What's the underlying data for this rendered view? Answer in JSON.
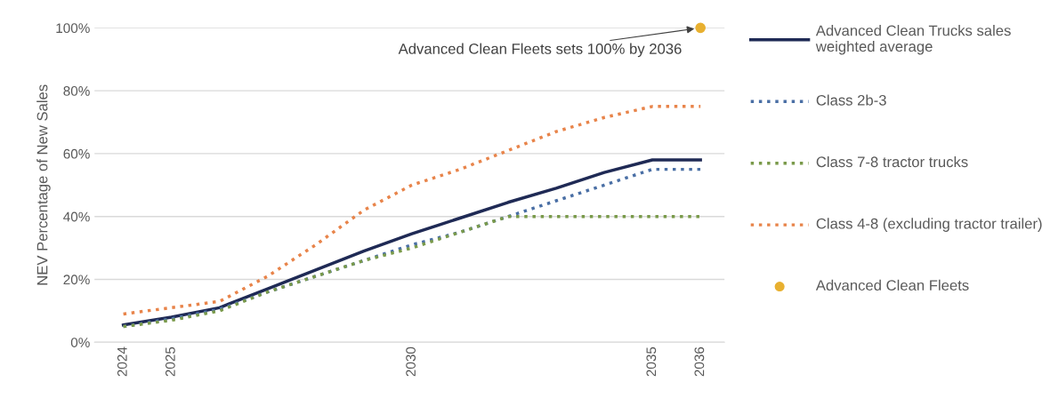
{
  "chart_data": {
    "type": "line",
    "ylabel": "NEV Percentage of New Sales",
    "x": [
      2024,
      2025,
      2026,
      2027,
      2028,
      2029,
      2030,
      2031,
      2032,
      2033,
      2034,
      2035,
      2036
    ],
    "series": [
      {
        "name": "Advanced Clean Trucks sales weighted average",
        "color": "#1f2a55",
        "line_style": "solid",
        "values": [
          5.5,
          8,
          11,
          17,
          23,
          29,
          34.5,
          39.5,
          44.5,
          49,
          54,
          58,
          58
        ]
      },
      {
        "name": "Class 2b-3",
        "color": "#4a6fa5",
        "line_style": "dotted",
        "values": [
          5,
          7.5,
          10.5,
          16,
          21,
          26,
          31,
          35,
          40,
          45,
          50,
          55,
          55
        ]
      },
      {
        "name": "Class 7-8 tractor trucks",
        "color": "#7a9a4a",
        "line_style": "dotted",
        "values": [
          5,
          7,
          10,
          16,
          21,
          26,
          30,
          35,
          40,
          40,
          40,
          40,
          40
        ]
      },
      {
        "name": "Class 4-8 (excluding tractor trailer)",
        "color": "#e8844a",
        "line_style": "dotted",
        "values": [
          9,
          11,
          13,
          21,
          31,
          42,
          50,
          55,
          61,
          67,
          71.5,
          75,
          75
        ]
      },
      {
        "name": "Advanced Clean Fleets",
        "type": "scatter",
        "marker": "circle",
        "color": "#e8b030",
        "x": [
          2036
        ],
        "values": [
          100
        ]
      }
    ],
    "xlim": [
      2023.4,
      2036.5
    ],
    "xticks": [
      2024,
      2025,
      2030,
      2035,
      2036
    ],
    "ylim": [
      0,
      100
    ],
    "yticks": [
      {
        "value": 0,
        "label": "0%"
      },
      {
        "value": 20,
        "label": "20%"
      },
      {
        "value": 40,
        "label": "40%"
      },
      {
        "value": 60,
        "label": "60%"
      },
      {
        "value": 80,
        "label": "80%"
      },
      {
        "value": 100,
        "label": "100%"
      }
    ],
    "grid": "y",
    "legend": "right",
    "marker": "none",
    "annotations": [
      {
        "text": "Advanced Clean Fleets sets 100% by 2036",
        "x": 2036,
        "y": 100
      }
    ]
  }
}
